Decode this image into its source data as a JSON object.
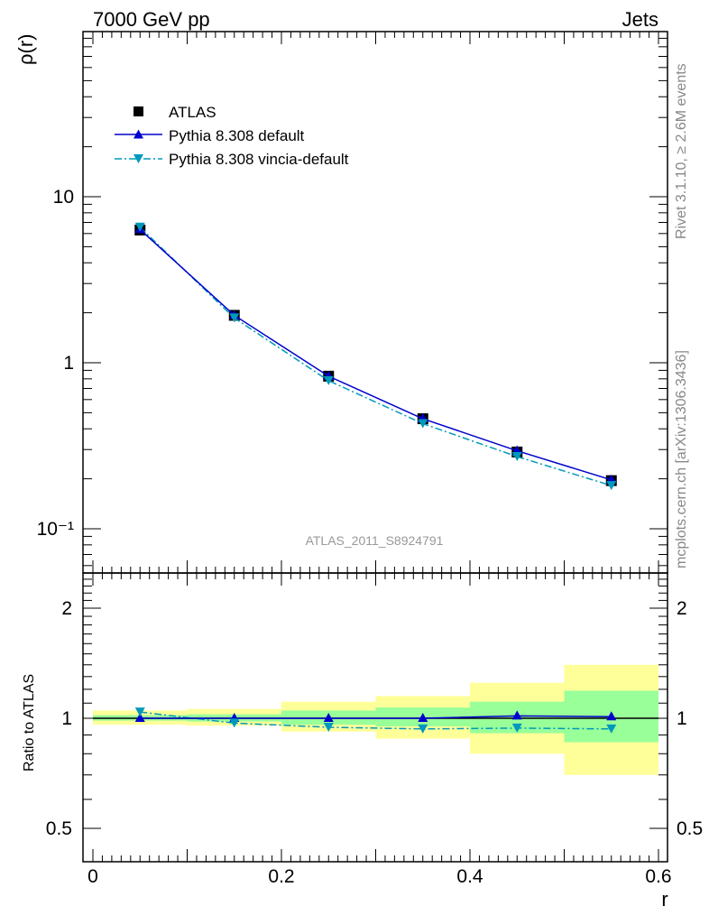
{
  "header": {
    "left": "7000 GeV pp",
    "right": "Jets"
  },
  "side_text": {
    "rivet": "Rivet 3.1.10, ≥ 2.6M events",
    "mcplots": "mcplots.cern.ch [arXiv:1306.3436]"
  },
  "analysis_label": "ATLAS_2011_S8924791",
  "colors": {
    "default": "#0000cc",
    "vincia": "#0099bb",
    "band_inner": "#99ff99",
    "band_outer": "#ffff99"
  },
  "chart_data": [
    {
      "type": "line",
      "ylabel": "ρ(r)",
      "xlabel": "r",
      "log_y": true,
      "xlim": [
        0,
        0.6
      ],
      "ylim": [
        0.065,
        100
      ],
      "ytick_labels": [
        "10",
        "1",
        "10⁻¹"
      ],
      "legend_position": "top-left",
      "x": [
        0.05,
        0.15,
        0.25,
        0.35,
        0.45,
        0.55
      ],
      "series": [
        {
          "name": "ATLAS",
          "values": [
            6.3,
            1.93,
            0.83,
            0.46,
            0.29,
            0.195
          ]
        },
        {
          "name": "Pythia 8.308 default",
          "values": [
            6.35,
            1.93,
            0.83,
            0.46,
            0.295,
            0.197
          ]
        },
        {
          "name": "Pythia 8.308 vincia-default",
          "values": [
            6.55,
            1.86,
            0.78,
            0.43,
            0.272,
            0.182
          ]
        }
      ]
    },
    {
      "type": "line",
      "ylabel": "Ratio to ATLAS",
      "xlabel": "r",
      "xlim": [
        0,
        0.6
      ],
      "ylim": [
        0.4,
        2.4
      ],
      "xtick_labels": [
        "0",
        "0.2",
        "0.4",
        "0.6"
      ],
      "ytick_labels": [
        "2",
        "1",
        "0.5"
      ],
      "x": [
        0.05,
        0.15,
        0.25,
        0.35,
        0.45,
        0.55
      ],
      "bands": {
        "edges": [
          0,
          0.1,
          0.2,
          0.3,
          0.4,
          0.5,
          0.6
        ],
        "inner": [
          [
            0.985,
            1.02
          ],
          [
            0.98,
            1.025
          ],
          [
            0.96,
            1.05
          ],
          [
            0.95,
            1.07
          ],
          [
            0.91,
            1.11
          ],
          [
            0.86,
            1.19
          ]
        ],
        "outer": [
          [
            0.96,
            1.05
          ],
          [
            0.955,
            1.06
          ],
          [
            0.92,
            1.11
          ],
          [
            0.88,
            1.15
          ],
          [
            0.8,
            1.25
          ],
          [
            0.7,
            1.4
          ]
        ]
      },
      "series": [
        {
          "name": "Pythia 8.308 default",
          "values": [
            1.0,
            1.0,
            1.0,
            1.0,
            1.015,
            1.01
          ]
        },
        {
          "name": "Pythia 8.308 vincia-default",
          "values": [
            1.04,
            0.97,
            0.945,
            0.935,
            0.94,
            0.935
          ]
        }
      ]
    }
  ]
}
